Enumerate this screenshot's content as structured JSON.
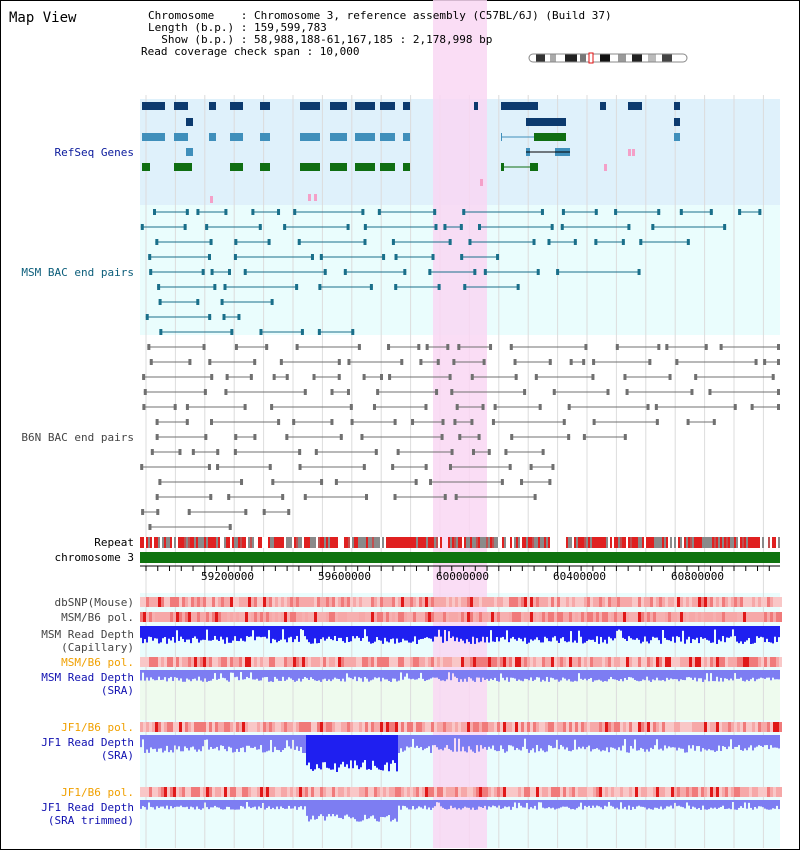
{
  "panel_title": "Map View",
  "info": {
    "chromosome_line": "Chromosome    : Chromosome 3, reference assembly (C57BL/6J) (Build 37)",
    "length_line": "Length (b.p.) : 159,599,783",
    "show_line": "  Show (b.p.) : 58,988,188-61,167,185 : 2,178,998 bp",
    "coverage_line": "Read coverage check span : 10,000"
  },
  "tracks": {
    "refseq": "RefSeq Genes",
    "msm_bac": "MSM BAC end pairs",
    "b6n_bac": "B6N BAC end pairs",
    "repeat": "Repeat",
    "chromosome": "chromosome 3",
    "dbsnp": "dbSNP(Mouse)",
    "msm_pol_1": "MSM/B6 pol.",
    "msm_read_cap_1": "MSM Read Depth",
    "msm_read_cap_2": "(Capillary)",
    "msm_pol_2": "MSM/B6 pol.",
    "msm_read_sra_1": "MSM Read Depth",
    "msm_read_sra_2": "(SRA)",
    "jf1_pol_1": "JF1/B6 pol.",
    "jf1_read_sra_1": "JF1 Read Depth",
    "jf1_read_sra_2": "(SRA)",
    "jf1_pol_2": "JF1/B6 pol.",
    "jf1_trim_1": "JF1 Read Depth",
    "jf1_trim_2": "(SRA trimmed)"
  },
  "axis": {
    "ticks": [
      "59200000",
      "59600000",
      "60000000",
      "60400000",
      "60800000"
    ]
  },
  "colors": {
    "refseq_bg": "#dff1fb",
    "bac_bg": "#eafdfd",
    "highlight": "#f9d7f3",
    "gene_dark": "#0c3a6e",
    "gene_mid": "#3f8fbb",
    "gene_green": "#0f6e12",
    "msm_bac": "#1a6f8a",
    "b6n_bac": "#707070",
    "chromosome": "#0f730f",
    "read_depth": "#1f1ff0",
    "read_depth_light": "#7d7df2"
  }
}
